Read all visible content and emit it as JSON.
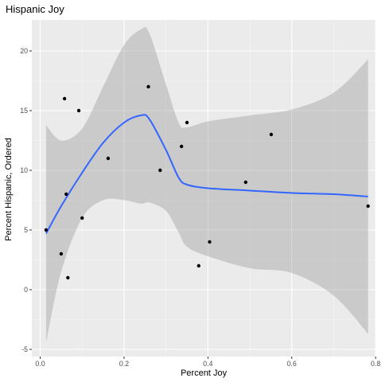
{
  "chart_data": {
    "type": "scatter",
    "title": "Hispanic Joy",
    "xlabel": "Percent Joy",
    "ylabel": "Percent Hispanic, Ordered",
    "xlim": [
      -0.02,
      0.8
    ],
    "ylim": [
      -5.6,
      22.6
    ],
    "x_ticks": [
      0.0,
      0.2,
      0.4,
      0.6,
      0.8
    ],
    "x_tick_labels": [
      "0.0",
      "0.2",
      "0.4",
      "0.6",
      "0.8"
    ],
    "y_ticks": [
      -5,
      0,
      5,
      10,
      15,
      20
    ],
    "y_tick_labels": [
      "-5",
      "0",
      "5",
      "10",
      "15",
      "20"
    ],
    "grid": true,
    "legend": "none",
    "colors": {
      "panel_background": "#ebebeb",
      "grid_major": "#ffffff",
      "grid_minor": "#f5f5f5",
      "points": "#000000",
      "smooth_line": "#3366ff",
      "confidence_band": "#999999",
      "axis_text": "#4d4d4d"
    },
    "points": [
      {
        "x": 0.014,
        "y": 5
      },
      {
        "x": 0.05,
        "y": 3
      },
      {
        "x": 0.058,
        "y": 16
      },
      {
        "x": 0.062,
        "y": 8
      },
      {
        "x": 0.066,
        "y": 1
      },
      {
        "x": 0.092,
        "y": 15
      },
      {
        "x": 0.1,
        "y": 6
      },
      {
        "x": 0.162,
        "y": 11
      },
      {
        "x": 0.258,
        "y": 17
      },
      {
        "x": 0.286,
        "y": 10
      },
      {
        "x": 0.337,
        "y": 12
      },
      {
        "x": 0.35,
        "y": 14
      },
      {
        "x": 0.378,
        "y": 2
      },
      {
        "x": 0.404,
        "y": 4
      },
      {
        "x": 0.49,
        "y": 9
      },
      {
        "x": 0.551,
        "y": 13
      },
      {
        "x": 0.782,
        "y": 7
      }
    ],
    "smooth": [
      {
        "x": 0.014,
        "y": 4.7,
        "lower": -4.4,
        "upper": 13.8
      },
      {
        "x": 0.05,
        "y": 7.0,
        "lower": 1.5,
        "upper": 12.5
      },
      {
        "x": 0.1,
        "y": 9.8,
        "lower": 6.0,
        "upper": 13.5
      },
      {
        "x": 0.15,
        "y": 12.3,
        "lower": 7.5,
        "upper": 17.0
      },
      {
        "x": 0.2,
        "y": 14.0,
        "lower": 7.5,
        "upper": 20.5
      },
      {
        "x": 0.24,
        "y": 14.6,
        "lower": 7.2,
        "upper": 21.8
      },
      {
        "x": 0.26,
        "y": 14.3,
        "lower": 7.3,
        "upper": 21.5
      },
      {
        "x": 0.3,
        "y": 11.7,
        "lower": 6.6,
        "upper": 17.2
      },
      {
        "x": 0.33,
        "y": 9.4,
        "lower": 4.8,
        "upper": 14.0
      },
      {
        "x": 0.35,
        "y": 8.8,
        "lower": 3.6,
        "upper": 13.6
      },
      {
        "x": 0.4,
        "y": 8.5,
        "lower": 2.8,
        "upper": 14.1
      },
      {
        "x": 0.5,
        "y": 8.3,
        "lower": 1.8,
        "upper": 14.6
      },
      {
        "x": 0.6,
        "y": 8.1,
        "lower": 1.4,
        "upper": 15.1
      },
      {
        "x": 0.7,
        "y": 8.0,
        "lower": -0.5,
        "upper": 16.5
      },
      {
        "x": 0.782,
        "y": 7.8,
        "lower": -3.7,
        "upper": 19.3
      }
    ]
  }
}
